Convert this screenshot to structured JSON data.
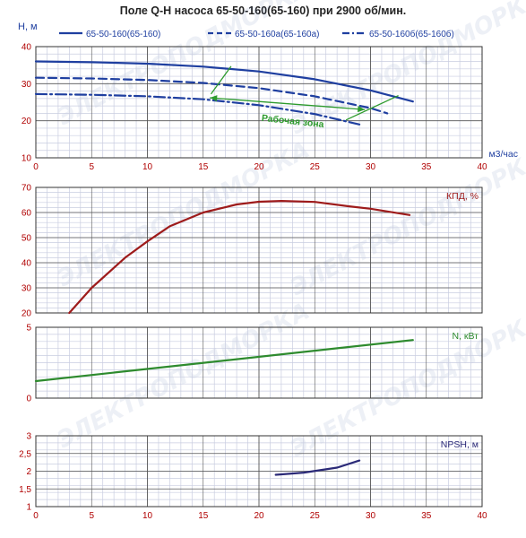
{
  "title": "Поле Q-H насоса 65-50-160(65-160) при 2900 об/мин.",
  "colors": {
    "grid_major": "#555555",
    "grid_minor": "#c9cde0",
    "tick_label": "#b00000",
    "h_series": "#1f3fa0",
    "efficiency": "#9e1b1b",
    "power": "#2e8b2e",
    "npsh": "#2b2a78",
    "work_zone": "#2e9b2e"
  },
  "watermark_text": "ЭЛЕКТРОПОДМОРКА",
  "chart_data": [
    {
      "id": "qh",
      "type": "line",
      "y_title": "H, м",
      "x_title": "м3/час",
      "xlim": [
        0,
        40
      ],
      "ylim": [
        10,
        40
      ],
      "x_ticks": [
        0,
        5,
        10,
        15,
        20,
        25,
        30,
        35,
        40
      ],
      "y_ticks": [
        10,
        20,
        30,
        40
      ],
      "series": [
        {
          "name": "65-50-160(65-160)",
          "style": "solid",
          "x": [
            0,
            5,
            10,
            15,
            20,
            25,
            30,
            33.8
          ],
          "y": [
            36,
            35.8,
            35.4,
            34.6,
            33.3,
            31.2,
            28.2,
            25.2
          ]
        },
        {
          "name": "65-50-160а(65-160а)",
          "style": "dash",
          "x": [
            0,
            5,
            10,
            15,
            20,
            25,
            30,
            31.5
          ],
          "y": [
            31.6,
            31.4,
            31.0,
            30.2,
            28.8,
            26.6,
            23.4,
            22.0
          ]
        },
        {
          "name": "65-50-160б(65-160б)",
          "style": "dashdot",
          "x": [
            0,
            5,
            10,
            15,
            20,
            25,
            29
          ],
          "y": [
            27.2,
            27.0,
            26.6,
            25.8,
            24.2,
            21.8,
            19.0
          ]
        }
      ],
      "work_zone": {
        "label": "Рабочая зона",
        "left_line": {
          "x": [
            17.5,
            15.7
          ],
          "y": [
            34.7,
            27.2
          ]
        },
        "right_line": {
          "x": [
            32.5,
            27.8
          ],
          "y": [
            26.8,
            20.2
          ]
        },
        "arrow": {
          "x": [
            15.6,
            29.5
          ],
          "y": [
            26.2,
            23.0
          ]
        }
      }
    },
    {
      "id": "efficiency",
      "type": "line",
      "y_title": "КПД, %",
      "xlim": [
        0,
        40
      ],
      "ylim": [
        20,
        70
      ],
      "y_ticks": [
        20,
        30,
        40,
        50,
        60,
        70
      ],
      "series": [
        {
          "name": "КПД, %",
          "x": [
            3,
            5,
            8,
            10,
            12,
            15,
            18,
            20,
            22,
            25,
            28,
            30,
            33.5
          ],
          "y": [
            20,
            30,
            42,
            48.5,
            54.5,
            60,
            63.2,
            64.3,
            64.6,
            64.2,
            62.5,
            61.5,
            59
          ]
        }
      ]
    },
    {
      "id": "power",
      "type": "line",
      "y_title": "N, кВт",
      "xlim": [
        0,
        40
      ],
      "ylim": [
        0,
        5
      ],
      "y_ticks": [
        0,
        5
      ],
      "series": [
        {
          "name": "N, кВт",
          "x": [
            0,
            33.8
          ],
          "y": [
            1.2,
            4.1
          ]
        }
      ]
    },
    {
      "id": "npsh",
      "type": "line",
      "y_title": "NPSH, м",
      "xlim": [
        0,
        40
      ],
      "ylim": [
        1,
        3
      ],
      "x_ticks": [
        0,
        5,
        10,
        15,
        20,
        25,
        30,
        35,
        40
      ],
      "y_ticks": [
        1,
        1.5,
        2,
        2.5,
        3
      ],
      "y_tick_labels": [
        "1",
        "1,5",
        "2",
        "2,5",
        "3"
      ],
      "series": [
        {
          "name": "NPSH, м",
          "x": [
            21.5,
            24,
            27,
            29
          ],
          "y": [
            1.9,
            1.96,
            2.1,
            2.3
          ]
        }
      ]
    }
  ]
}
